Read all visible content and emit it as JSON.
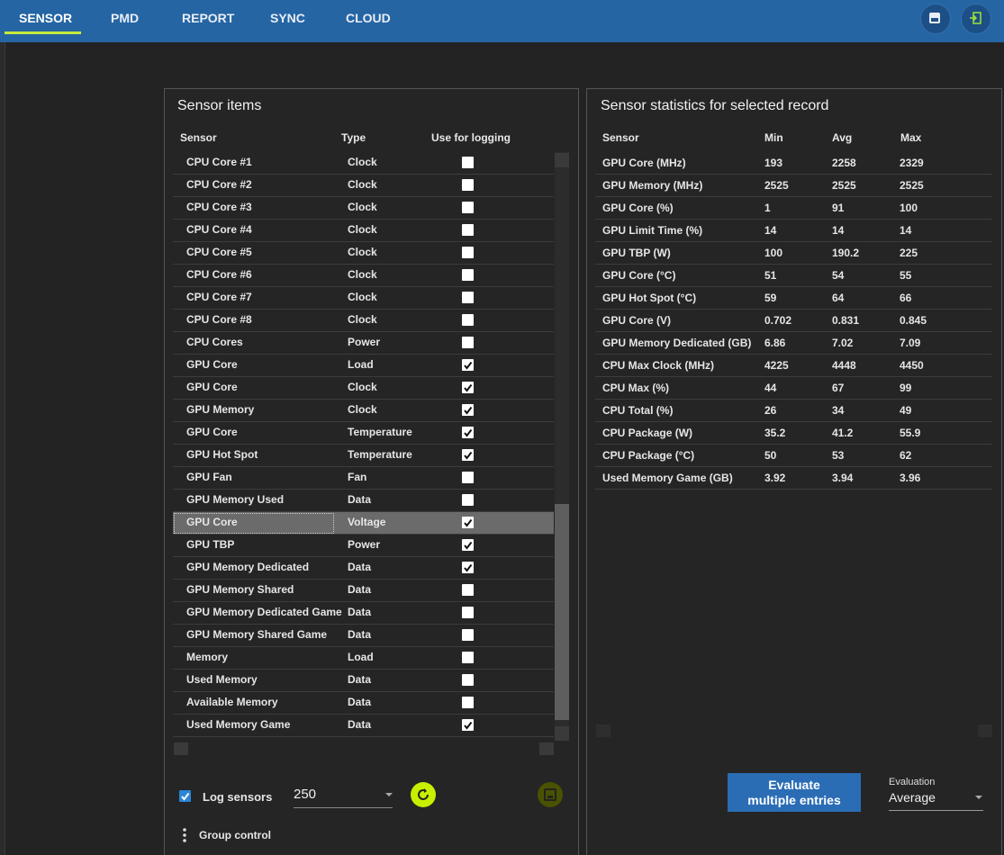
{
  "nav": {
    "tabs": [
      "SENSOR",
      "PMD",
      "REPORT",
      "SYNC",
      "CLOUD"
    ],
    "active_tab": 0
  },
  "sensor_items": {
    "title": "Sensor items",
    "columns": [
      "Sensor",
      "Type",
      "Use for logging"
    ],
    "selected_row": 16,
    "rows": [
      {
        "sensor": "CPU Core #1",
        "type": "Clock",
        "use_for_logging": false
      },
      {
        "sensor": "CPU Core #2",
        "type": "Clock",
        "use_for_logging": false
      },
      {
        "sensor": "CPU Core #3",
        "type": "Clock",
        "use_for_logging": false
      },
      {
        "sensor": "CPU Core #4",
        "type": "Clock",
        "use_for_logging": false
      },
      {
        "sensor": "CPU Core #5",
        "type": "Clock",
        "use_for_logging": false
      },
      {
        "sensor": "CPU Core #6",
        "type": "Clock",
        "use_for_logging": false
      },
      {
        "sensor": "CPU Core #7",
        "type": "Clock",
        "use_for_logging": false
      },
      {
        "sensor": "CPU Core #8",
        "type": "Clock",
        "use_for_logging": false
      },
      {
        "sensor": "CPU Cores",
        "type": "Power",
        "use_for_logging": false
      },
      {
        "sensor": "GPU Core",
        "type": "Load",
        "use_for_logging": true
      },
      {
        "sensor": "GPU Core",
        "type": "Clock",
        "use_for_logging": true
      },
      {
        "sensor": "GPU Memory",
        "type": "Clock",
        "use_for_logging": true
      },
      {
        "sensor": "GPU Core",
        "type": "Temperature",
        "use_for_logging": true
      },
      {
        "sensor": "GPU Hot Spot",
        "type": "Temperature",
        "use_for_logging": true
      },
      {
        "sensor": "GPU Fan",
        "type": "Fan",
        "use_for_logging": false
      },
      {
        "sensor": "GPU Memory Used",
        "type": "Data",
        "use_for_logging": false
      },
      {
        "sensor": "GPU Core",
        "type": "Voltage",
        "use_for_logging": true
      },
      {
        "sensor": "GPU TBP",
        "type": "Power",
        "use_for_logging": true
      },
      {
        "sensor": "GPU Memory Dedicated",
        "type": "Data",
        "use_for_logging": true
      },
      {
        "sensor": "GPU Memory Shared",
        "type": "Data",
        "use_for_logging": false
      },
      {
        "sensor": "GPU Memory Dedicated Game",
        "type": "Data",
        "use_for_logging": false
      },
      {
        "sensor": "GPU Memory Shared Game",
        "type": "Data",
        "use_for_logging": false
      },
      {
        "sensor": "Memory",
        "type": "Load",
        "use_for_logging": false
      },
      {
        "sensor": "Used Memory",
        "type": "Data",
        "use_for_logging": false
      },
      {
        "sensor": "Available Memory",
        "type": "Data",
        "use_for_logging": false
      },
      {
        "sensor": "Used Memory Game",
        "type": "Data",
        "use_for_logging": true
      }
    ]
  },
  "controls": {
    "log_sensors": {
      "label": "Log sensors",
      "checked": true
    },
    "interval": "250",
    "group_control": "Group control"
  },
  "statistics": {
    "title": "Sensor statistics for selected record",
    "columns": [
      "Sensor",
      "Min",
      "Avg",
      "Max"
    ],
    "rows": [
      [
        "GPU Core (MHz)",
        "193",
        "2258",
        "2329"
      ],
      [
        "GPU Memory (MHz)",
        "2525",
        "2525",
        "2525"
      ],
      [
        "GPU Core (%)",
        "1",
        "91",
        "100"
      ],
      [
        "GPU Limit Time (%)",
        "14",
        "14",
        "14"
      ],
      [
        "GPU TBP (W)",
        "100",
        "190.2",
        "225"
      ],
      [
        "GPU Core (°C)",
        "51",
        "54",
        "55"
      ],
      [
        "GPU Hot Spot (°C)",
        "59",
        "64",
        "66"
      ],
      [
        "GPU Core (V)",
        "0.702",
        "0.831",
        "0.845"
      ],
      [
        "GPU Memory Dedicated (GB)",
        "6.86",
        "7.02",
        "7.09"
      ],
      [
        "CPU Max Clock (MHz)",
        "4225",
        "4448",
        "4450"
      ],
      [
        "CPU Max (%)",
        "44",
        "67",
        "99"
      ],
      [
        "CPU Total (%)",
        "26",
        "34",
        "49"
      ],
      [
        "CPU Package (W)",
        "35.2",
        "41.2",
        "55.9"
      ],
      [
        "CPU Package (°C)",
        "50",
        "53",
        "62"
      ],
      [
        "Used Memory Game (GB)",
        "3.92",
        "3.94",
        "3.96"
      ]
    ]
  },
  "evaluate_button": {
    "lines": [
      "Evaluate",
      "multiple entries"
    ]
  },
  "evaluation": {
    "label": "Evaluation",
    "value": "Average"
  }
}
